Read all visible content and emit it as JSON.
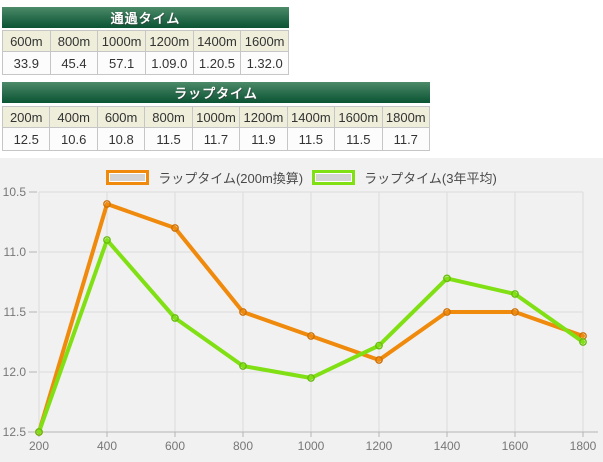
{
  "pass_table": {
    "title": "通過タイム",
    "headers": [
      "600m",
      "800m",
      "1000m",
      "1200m",
      "1400m",
      "1600m"
    ],
    "values": [
      "33.9",
      "45.4",
      "57.1",
      "1.09.0",
      "1.20.5",
      "1.32.0"
    ]
  },
  "lap_table": {
    "title": "ラップタイム",
    "headers": [
      "200m",
      "400m",
      "600m",
      "800m",
      "1000m",
      "1200m",
      "1400m",
      "1600m",
      "1800m"
    ],
    "values": [
      "12.5",
      "10.6",
      "10.8",
      "11.5",
      "11.7",
      "11.9",
      "11.5",
      "11.5",
      "11.7"
    ]
  },
  "chart_data": {
    "type": "line",
    "x": [
      200,
      400,
      600,
      800,
      1000,
      1200,
      1400,
      1600,
      1800
    ],
    "series": [
      {
        "name": "ラップタイム(200m換算)",
        "color": "#ef8a0c",
        "marker_color": "#cf7209",
        "values": [
          12.5,
          10.6,
          10.8,
          11.5,
          11.7,
          11.9,
          11.5,
          11.5,
          11.7
        ]
      },
      {
        "name": "ラップタイム(3年平均)",
        "color": "#80e014",
        "marker_color": "#69bd0f",
        "values": [
          12.5,
          10.9,
          11.55,
          11.95,
          12.05,
          11.78,
          11.22,
          11.35,
          11.75
        ]
      }
    ],
    "yticks": [
      10.5,
      11.0,
      11.5,
      12.0,
      12.5
    ],
    "ylim": [
      10.5,
      12.5
    ],
    "y_inverted": true,
    "xlabel": "",
    "ylabel": "",
    "grid": true,
    "legend_position": "top"
  },
  "colors": {
    "header_bar_top": "#4d8b69",
    "header_bar_bottom": "#0b5433",
    "table_header_bg": "#efeeda",
    "table_cell_bg": "#fcfcfc",
    "table_border": "#c6c6c6",
    "chart_bg": "#f1f1f1",
    "grid_line": "#dcdcdc",
    "axis_line": "#b5b5b5",
    "tick_text": "#777777",
    "legend_swatch_fill": "#d4d4d4",
    "legend_text": "#4a4a4a"
  }
}
